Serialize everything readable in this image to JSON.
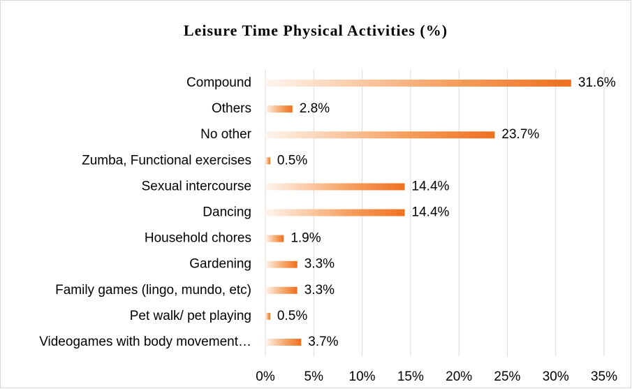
{
  "chart_data": {
    "type": "barh",
    "title": "Leisure Time Physical Activities (%)",
    "categories": [
      "Compound",
      "Others",
      "No other",
      "Zumba, Functional exercises",
      "Sexual intercourse",
      "Dancing",
      "Household chores",
      "Gardening",
      "Family games (lingo, mundo, etc)",
      "Pet walk/ pet playing",
      "Videogames with body movement…"
    ],
    "values": [
      31.6,
      2.8,
      23.7,
      0.5,
      14.4,
      14.4,
      1.9,
      3.3,
      3.3,
      0.5,
      3.7
    ],
    "value_labels": [
      "31.6%",
      "2.8%",
      "23.7%",
      "0.5%",
      "14.4%",
      "14.4%",
      "1.9%",
      "3.3%",
      "3.3%",
      "0.5%",
      "3.7%"
    ],
    "color": "#f07020",
    "xlim": [
      0,
      35
    ],
    "xticks": [
      {
        "value": 0,
        "label": "0%"
      },
      {
        "value": 5,
        "label": "5%"
      },
      {
        "value": 10,
        "label": "10%"
      },
      {
        "value": 15,
        "label": "15%"
      },
      {
        "value": 20,
        "label": "20%"
      },
      {
        "value": 25,
        "label": "25%"
      },
      {
        "value": 30,
        "label": "30%"
      },
      {
        "value": 35,
        "label": "35%"
      }
    ],
    "grid": true
  }
}
